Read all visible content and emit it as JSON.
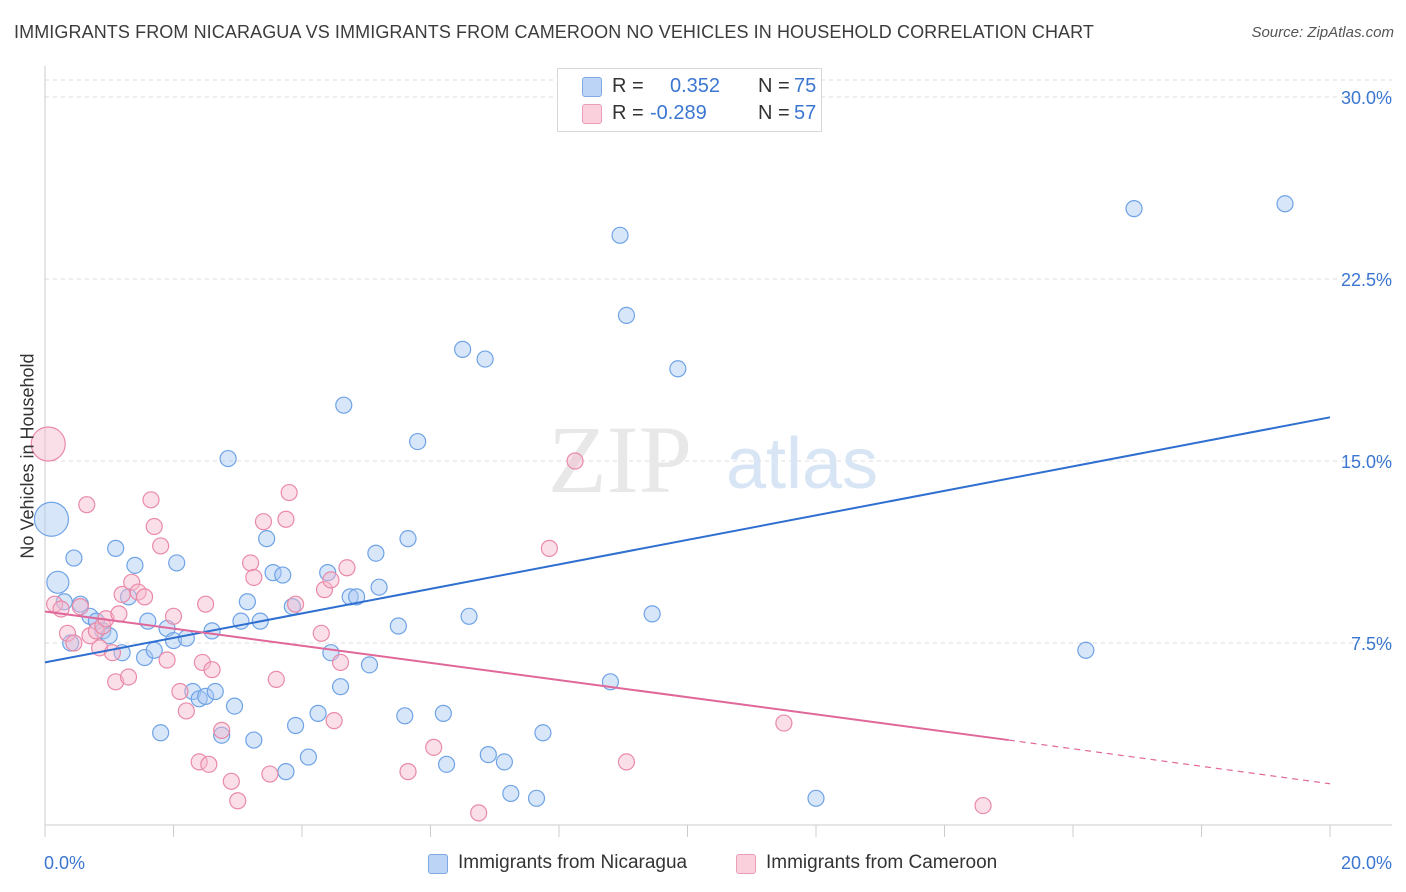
{
  "header": {
    "title": "IMMIGRANTS FROM NICARAGUA VS IMMIGRANTS FROM CAMEROON NO VEHICLES IN HOUSEHOLD CORRELATION CHART",
    "source": "Source: ZipAtlas.com"
  },
  "watermark": {
    "zip": "ZIP",
    "atlas": "atlas"
  },
  "legend": {
    "rows": [
      {
        "r_label": "R =",
        "r_value": "0.352",
        "n_label": "N =",
        "n_value": "75",
        "color": "#a9c8f2"
      },
      {
        "r_label": "R =",
        "r_value": "-0.289",
        "n_label": "N =",
        "n_value": "57",
        "color": "#f7b9cc"
      }
    ]
  },
  "bottom_legend": {
    "items": [
      {
        "label": "Immigrants from Nicaragua",
        "color": "#a9c8f2"
      },
      {
        "label": "Immigrants from Cameroon",
        "color": "#f7b9cc"
      }
    ]
  },
  "chart_data": {
    "type": "scatter",
    "title": "IMMIGRANTS FROM NICARAGUA VS IMMIGRANTS FROM CAMEROON NO VEHICLES IN HOUSEHOLD CORRELATION CHART",
    "xlabel": "",
    "ylabel": "No Vehicles in Household",
    "xlim": [
      0,
      20
    ],
    "ylim": [
      0,
      31
    ],
    "x_tick_labels": [
      "0.0%",
      "20.0%"
    ],
    "y_ticks": [
      7.5,
      15.0,
      22.5,
      30.0
    ],
    "y_tick_labels": [
      "7.5%",
      "15.0%",
      "22.5%",
      "30.0%"
    ],
    "grid": true,
    "legend_position": "top-center",
    "series": [
      {
        "name": "Immigrants from Nicaragua",
        "color": "#6fa3e6",
        "fill": "#a9c8f2",
        "trend": {
          "x": [
            0,
            20
          ],
          "y": [
            6.7,
            16.8
          ]
        },
        "points": [
          {
            "x": 0.1,
            "y": 12.6,
            "big": 2
          },
          {
            "x": 0.2,
            "y": 10.0,
            "big": 1
          },
          {
            "x": 0.3,
            "y": 9.2
          },
          {
            "x": 0.4,
            "y": 7.5
          },
          {
            "x": 0.45,
            "y": 11.0
          },
          {
            "x": 0.55,
            "y": 9.1
          },
          {
            "x": 0.7,
            "y": 8.6
          },
          {
            "x": 0.8,
            "y": 8.4
          },
          {
            "x": 0.9,
            "y": 8.0
          },
          {
            "x": 1.0,
            "y": 7.8
          },
          {
            "x": 1.1,
            "y": 11.4
          },
          {
            "x": 1.2,
            "y": 7.1
          },
          {
            "x": 1.3,
            "y": 9.4
          },
          {
            "x": 1.4,
            "y": 10.7
          },
          {
            "x": 1.55,
            "y": 6.9
          },
          {
            "x": 1.6,
            "y": 8.4
          },
          {
            "x": 1.7,
            "y": 7.2
          },
          {
            "x": 1.8,
            "y": 3.8
          },
          {
            "x": 1.9,
            "y": 8.1
          },
          {
            "x": 2.0,
            "y": 7.6
          },
          {
            "x": 2.05,
            "y": 10.8
          },
          {
            "x": 2.2,
            "y": 7.7
          },
          {
            "x": 2.3,
            "y": 5.5
          },
          {
            "x": 2.4,
            "y": 5.2
          },
          {
            "x": 2.5,
            "y": 5.3
          },
          {
            "x": 2.6,
            "y": 8.0
          },
          {
            "x": 2.65,
            "y": 5.5
          },
          {
            "x": 2.75,
            "y": 3.7
          },
          {
            "x": 2.85,
            "y": 15.1
          },
          {
            "x": 2.95,
            "y": 4.9
          },
          {
            "x": 3.05,
            "y": 8.4
          },
          {
            "x": 3.15,
            "y": 9.2
          },
          {
            "x": 3.25,
            "y": 3.5
          },
          {
            "x": 3.35,
            "y": 8.4
          },
          {
            "x": 3.45,
            "y": 11.8
          },
          {
            "x": 3.55,
            "y": 10.4
          },
          {
            "x": 3.7,
            "y": 10.3
          },
          {
            "x": 3.75,
            "y": 2.2
          },
          {
            "x": 3.85,
            "y": 9.0
          },
          {
            "x": 3.9,
            "y": 4.1
          },
          {
            "x": 4.1,
            "y": 2.8
          },
          {
            "x": 4.25,
            "y": 4.6
          },
          {
            "x": 4.4,
            "y": 10.4
          },
          {
            "x": 4.45,
            "y": 7.1
          },
          {
            "x": 4.6,
            "y": 5.7
          },
          {
            "x": 4.65,
            "y": 17.3
          },
          {
            "x": 4.75,
            "y": 9.4
          },
          {
            "x": 4.85,
            "y": 9.4
          },
          {
            "x": 5.05,
            "y": 6.6
          },
          {
            "x": 5.15,
            "y": 11.2
          },
          {
            "x": 5.2,
            "y": 9.8
          },
          {
            "x": 5.5,
            "y": 8.2
          },
          {
            "x": 5.6,
            "y": 4.5
          },
          {
            "x": 5.65,
            "y": 11.8
          },
          {
            "x": 5.8,
            "y": 15.8
          },
          {
            "x": 6.2,
            "y": 4.6
          },
          {
            "x": 6.25,
            "y": 2.5
          },
          {
            "x": 6.5,
            "y": 19.6
          },
          {
            "x": 6.6,
            "y": 8.6
          },
          {
            "x": 6.85,
            "y": 19.2
          },
          {
            "x": 6.9,
            "y": 2.9
          },
          {
            "x": 7.15,
            "y": 2.6
          },
          {
            "x": 7.25,
            "y": 1.3
          },
          {
            "x": 7.65,
            "y": 1.1
          },
          {
            "x": 7.75,
            "y": 3.8
          },
          {
            "x": 8.8,
            "y": 5.9
          },
          {
            "x": 8.95,
            "y": 24.3
          },
          {
            "x": 9.05,
            "y": 21.0
          },
          {
            "x": 9.45,
            "y": 8.7
          },
          {
            "x": 9.85,
            "y": 18.8
          },
          {
            "x": 12.0,
            "y": 1.1
          },
          {
            "x": 16.2,
            "y": 7.2
          },
          {
            "x": 16.95,
            "y": 25.4
          },
          {
            "x": 19.3,
            "y": 25.6
          },
          {
            "x": 9.3,
            "y": 30.5,
            "hidden": true
          }
        ]
      },
      {
        "name": "Immigrants from Cameroon",
        "color": "#e98aa8",
        "fill": "#f7b9cc",
        "trend": {
          "x": [
            0,
            15
          ],
          "y": [
            8.8,
            3.5
          ],
          "dashed_x": [
            15,
            20
          ],
          "dashed_y": [
            3.5,
            1.7
          ]
        },
        "points": [
          {
            "x": 0.05,
            "y": 15.7,
            "big": 2
          },
          {
            "x": 0.15,
            "y": 9.1
          },
          {
            "x": 0.25,
            "y": 8.9
          },
          {
            "x": 0.35,
            "y": 7.9
          },
          {
            "x": 0.45,
            "y": 7.5
          },
          {
            "x": 0.55,
            "y": 9.0
          },
          {
            "x": 0.65,
            "y": 13.2
          },
          {
            "x": 0.7,
            "y": 7.8
          },
          {
            "x": 0.8,
            "y": 8.0
          },
          {
            "x": 0.85,
            "y": 7.3
          },
          {
            "x": 0.9,
            "y": 8.2
          },
          {
            "x": 0.95,
            "y": 8.5
          },
          {
            "x": 1.05,
            "y": 7.1
          },
          {
            "x": 1.1,
            "y": 5.9
          },
          {
            "x": 1.15,
            "y": 8.7
          },
          {
            "x": 1.2,
            "y": 9.5
          },
          {
            "x": 1.3,
            "y": 6.1
          },
          {
            "x": 1.35,
            "y": 10.0
          },
          {
            "x": 1.45,
            "y": 9.6
          },
          {
            "x": 1.55,
            "y": 9.4
          },
          {
            "x": 1.65,
            "y": 13.4
          },
          {
            "x": 1.7,
            "y": 12.3
          },
          {
            "x": 1.8,
            "y": 11.5
          },
          {
            "x": 1.9,
            "y": 6.8
          },
          {
            "x": 2.0,
            "y": 8.6
          },
          {
            "x": 2.1,
            "y": 5.5
          },
          {
            "x": 2.2,
            "y": 4.7
          },
          {
            "x": 2.4,
            "y": 2.6
          },
          {
            "x": 2.45,
            "y": 6.7
          },
          {
            "x": 2.5,
            "y": 9.1
          },
          {
            "x": 2.55,
            "y": 2.5
          },
          {
            "x": 2.6,
            "y": 6.4
          },
          {
            "x": 2.75,
            "y": 3.9
          },
          {
            "x": 2.9,
            "y": 1.8
          },
          {
            "x": 3.0,
            "y": 1.0
          },
          {
            "x": 3.2,
            "y": 10.8
          },
          {
            "x": 3.25,
            "y": 10.2
          },
          {
            "x": 3.4,
            "y": 12.5
          },
          {
            "x": 3.5,
            "y": 2.1
          },
          {
            "x": 3.6,
            "y": 6.0
          },
          {
            "x": 3.75,
            "y": 12.6
          },
          {
            "x": 3.8,
            "y": 13.7
          },
          {
            "x": 3.9,
            "y": 9.1
          },
          {
            "x": 4.35,
            "y": 9.7
          },
          {
            "x": 4.45,
            "y": 10.1
          },
          {
            "x": 4.5,
            "y": 4.3
          },
          {
            "x": 4.6,
            "y": 6.7
          },
          {
            "x": 4.7,
            "y": 10.6
          },
          {
            "x": 4.3,
            "y": 7.9
          },
          {
            "x": 5.65,
            "y": 2.2
          },
          {
            "x": 6.05,
            "y": 3.2
          },
          {
            "x": 6.75,
            "y": 0.5
          },
          {
            "x": 7.85,
            "y": 11.4
          },
          {
            "x": 8.25,
            "y": 15.0
          },
          {
            "x": 9.05,
            "y": 2.6
          },
          {
            "x": 11.5,
            "y": 4.2
          },
          {
            "x": 14.6,
            "y": 0.8
          }
        ]
      }
    ]
  }
}
